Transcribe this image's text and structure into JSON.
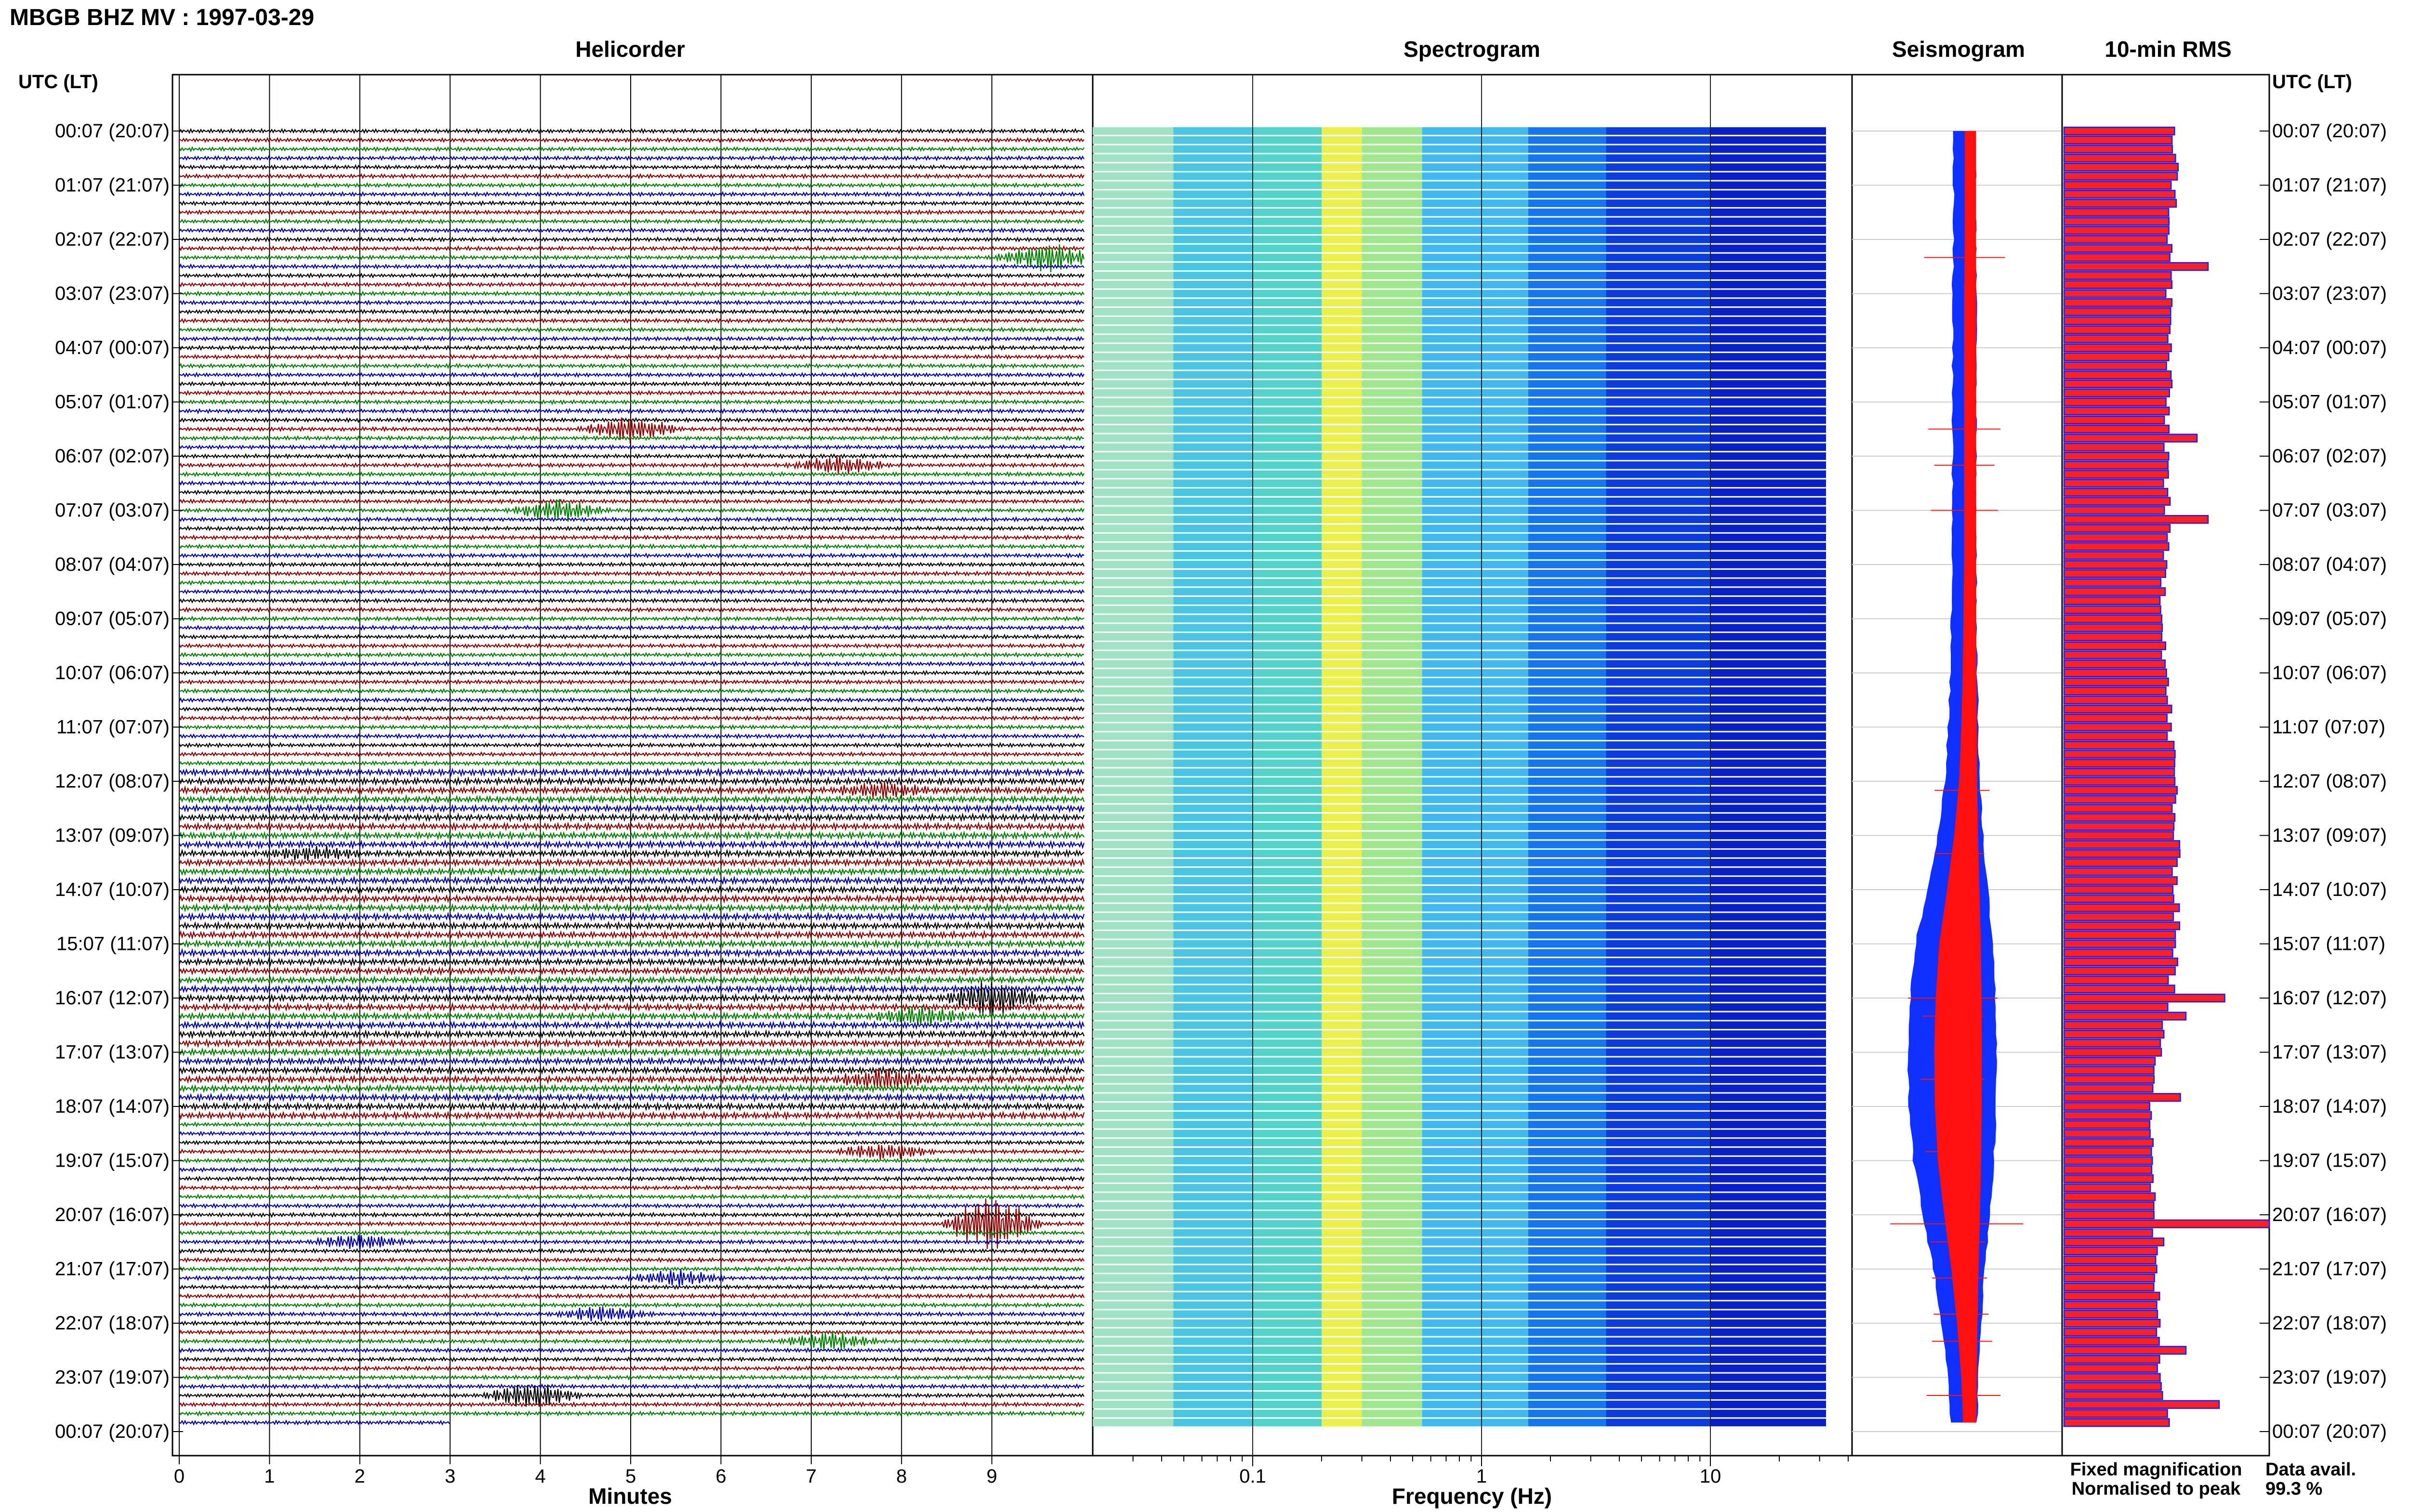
{
  "title": "MBGB BHZ MV : 1997-03-29",
  "panel_titles": {
    "helicorder": "Helicorder",
    "spectrogram": "Spectrogram",
    "seismogram": "Seismogram",
    "rms": "10-min RMS"
  },
  "time_axis_label": "UTC (LT)",
  "time_labels": [
    "00:07 (20:07)",
    "01:07 (21:07)",
    "02:07 (22:07)",
    "03:07 (23:07)",
    "04:07 (00:07)",
    "05:07 (01:07)",
    "06:07 (02:07)",
    "07:07 (03:07)",
    "08:07 (04:07)",
    "09:07 (05:07)",
    "10:07 (06:07)",
    "11:07 (07:07)",
    "12:07 (08:07)",
    "13:07 (09:07)",
    "14:07 (10:07)",
    "15:07 (11:07)",
    "16:07 (12:07)",
    "17:07 (13:07)",
    "18:07 (14:07)",
    "19:07 (15:07)",
    "20:07 (16:07)",
    "21:07 (17:07)",
    "22:07 (18:07)",
    "23:07 (19:07)",
    "00:07 (20:07)"
  ],
  "helicorder_axis": {
    "label": "Minutes",
    "ticks": [
      "0",
      "1",
      "2",
      "3",
      "4",
      "5",
      "6",
      "7",
      "8",
      "9"
    ]
  },
  "spectrogram_axis": {
    "label": "Frequency (Hz)",
    "ticks": [
      "0.1",
      "1",
      "10"
    ]
  },
  "legend": {
    "fixed": "Fixed magnification",
    "normalised": "Normalised to peak",
    "fixed_color": "#1030ff",
    "normalised_color": "#ff1010"
  },
  "data_avail": {
    "label": "Data avail.",
    "value": "99.3 %"
  },
  "colors": {
    "trace_cycle": [
      "#000000",
      "#8b0000",
      "#008000",
      "#0000a0"
    ],
    "rms_bar": "#ff2020",
    "rms_edge": "#1a1aff"
  },
  "chart_data": [
    {
      "type": "line",
      "title": "Helicorder",
      "xlabel": "Minutes",
      "xlim": [
        0,
        10
      ],
      "rows": 144,
      "row_minutes": 10,
      "start_time_utc": "00:07",
      "events": [
        {
          "row": 14,
          "minute": 9.6,
          "amp": 3.0
        },
        {
          "row": 33,
          "minute": 5.0,
          "amp": 2.5
        },
        {
          "row": 37,
          "minute": 7.3,
          "amp": 1.8
        },
        {
          "row": 42,
          "minute": 4.2,
          "amp": 2.2
        },
        {
          "row": 73,
          "minute": 7.8,
          "amp": 1.5
        },
        {
          "row": 80,
          "minute": 1.5,
          "amp": 1.2
        },
        {
          "row": 96,
          "minute": 9.0,
          "amp": 3.5
        },
        {
          "row": 98,
          "minute": 8.2,
          "amp": 1.8
        },
        {
          "row": 105,
          "minute": 7.8,
          "amp": 2.0
        },
        {
          "row": 113,
          "minute": 7.8,
          "amp": 1.6
        },
        {
          "row": 121,
          "minute": 9.0,
          "amp": 6.0
        },
        {
          "row": 123,
          "minute": 2.0,
          "amp": 1.5
        },
        {
          "row": 127,
          "minute": 5.5,
          "amp": 1.5
        },
        {
          "row": 131,
          "minute": 4.7,
          "amp": 1.5
        },
        {
          "row": 134,
          "minute": 7.2,
          "amp": 1.8
        },
        {
          "row": 140,
          "minute": 3.9,
          "amp": 2.6
        }
      ]
    },
    {
      "type": "heatmap",
      "title": "Spectrogram",
      "xlabel": "Frequency (Hz)",
      "x_scale": "log",
      "xlim": [
        0.02,
        50
      ],
      "colormap": "jet",
      "rows": 144
    },
    {
      "type": "line",
      "title": "Seismogram",
      "series": [
        {
          "name": "Fixed magnification",
          "color": "#1030ff"
        },
        {
          "name": "Normalised to peak",
          "color": "#ff1010"
        }
      ],
      "envelope_halfwidth_by_hour": [
        0.7,
        0.7,
        0.7,
        0.8,
        0.8,
        0.8,
        0.8,
        0.8,
        0.8,
        0.9,
        1.0,
        1.2,
        1.5,
        2.2,
        3.2,
        4.3,
        4.8,
        5.0,
        4.9,
        4.5,
        3.6,
        2.6,
        1.8,
        1.2,
        0.9
      ]
    },
    {
      "type": "bar",
      "title": "10-min RMS",
      "orientation": "horizontal",
      "rows": 144,
      "baseline_by_hour": [
        1.0,
        1.0,
        0.95,
        0.95,
        0.95,
        0.93,
        0.93,
        0.93,
        0.9,
        0.9,
        0.92,
        0.95,
        1.0,
        1.0,
        1.02,
        1.02,
        0.95,
        0.85,
        0.8,
        0.8,
        0.8,
        0.82,
        0.85,
        0.88,
        0.95
      ],
      "peaks": [
        {
          "row": 15,
          "value": 1.3
        },
        {
          "row": 34,
          "value": 1.2
        },
        {
          "row": 43,
          "value": 1.3
        },
        {
          "row": 96,
          "value": 1.45
        },
        {
          "row": 98,
          "value": 1.1
        },
        {
          "row": 107,
          "value": 1.05
        },
        {
          "row": 121,
          "value": 2.1
        },
        {
          "row": 123,
          "value": 0.9
        },
        {
          "row": 135,
          "value": 1.1
        },
        {
          "row": 141,
          "value": 1.4
        }
      ]
    }
  ]
}
